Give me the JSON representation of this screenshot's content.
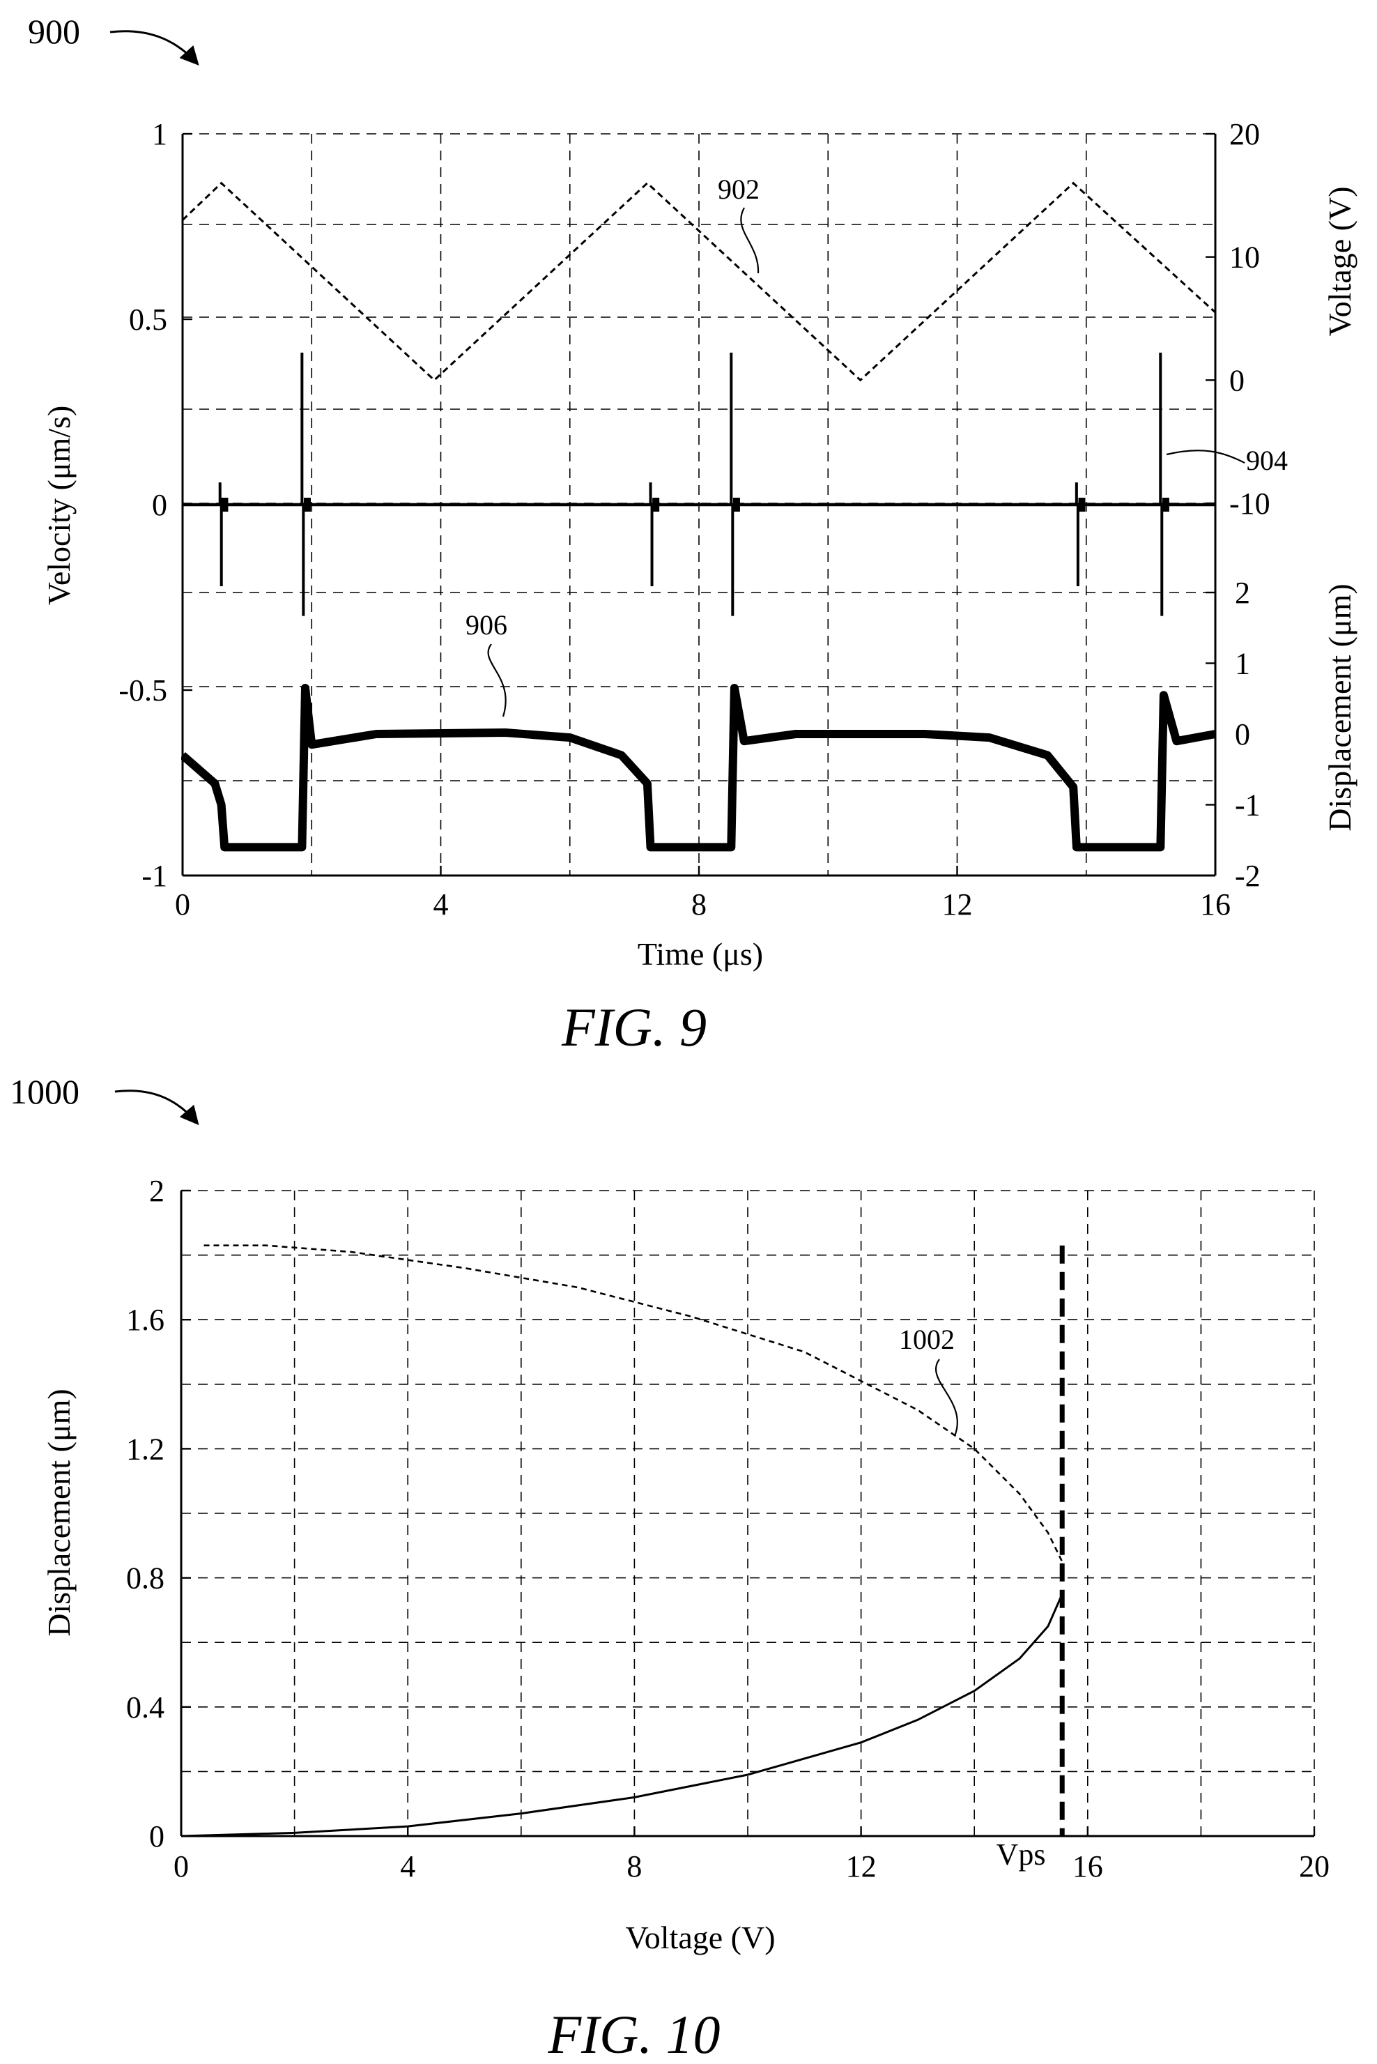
{
  "figure9": {
    "ref": "900",
    "caption": "FIG. 9",
    "xlabel": "Time (μs)",
    "ylabel_left": "Velocity (μm/s)",
    "ylabel_right_top": "Voltage (V)",
    "ylabel_right_bottom": "Displacement (μm)",
    "xticks": [
      "0",
      "4",
      "8",
      "12",
      "16"
    ],
    "yticks_left": [
      "1",
      "0.5",
      "0",
      "-0.5",
      "-1"
    ],
    "yticks_voltage": [
      "20",
      "10",
      "0",
      "-10"
    ],
    "yticks_displacement": [
      "2",
      "1",
      "0",
      "-1",
      "-2"
    ],
    "callouts": [
      "902",
      "904",
      "906"
    ]
  },
  "figure10": {
    "ref": "1000",
    "caption": "FIG. 10",
    "xlabel": "Voltage (V)",
    "ylabel": "Displacement (μm)",
    "xticks": [
      "0",
      "4",
      "8",
      "12",
      "16",
      "20"
    ],
    "yticks": [
      "2",
      "1.6",
      "1.2",
      "0.8",
      "0.4",
      "0"
    ],
    "callout": "1002",
    "vline_label": "Vps"
  },
  "chart_data": [
    {
      "type": "line",
      "title": "FIG. 9",
      "xlabel": "Time (μs)",
      "xlim": [
        0,
        16
      ],
      "grid": true,
      "series": [
        {
          "name": "902",
          "axis": "Voltage (V)",
          "ylim": [
            -20,
            20
          ],
          "x": [
            0,
            0.6,
            3.9,
            7.2,
            10.5,
            13.8,
            16
          ],
          "y": [
            13,
            16,
            0,
            16,
            0,
            16,
            5.5
          ]
        },
        {
          "name": "904",
          "axis": "Velocity (μm/s)",
          "ylim": [
            -1,
            1
          ],
          "x": [
            0,
            0.58,
            0.62,
            1.85,
            1.9,
            7.25,
            7.3,
            8.5,
            8.55,
            13.85,
            13.9,
            15.15,
            15.2,
            16
          ],
          "y": [
            0,
            0.06,
            -0.22,
            0.41,
            -0.3,
            0.06,
            -0.22,
            0.41,
            -0.3,
            0.06,
            -0.22,
            0.41,
            -0.3,
            0
          ]
        },
        {
          "name": "906",
          "axis": "Displacement (μm)",
          "ylim": [
            -2,
            2
          ],
          "x": [
            0,
            0.5,
            0.6,
            0.65,
            1.85,
            1.9,
            2.0,
            3.0,
            5.0,
            6.0,
            6.8,
            7.2,
            7.25,
            8.5,
            8.55,
            8.7,
            9.5,
            11.5,
            12.5,
            13.4,
            13.8,
            13.85,
            15.15,
            15.2,
            15.4,
            16
          ],
          "y": [
            -0.3,
            -0.7,
            -1.0,
            -1.6,
            -1.6,
            0.65,
            -0.15,
            0,
            0.02,
            -0.05,
            -0.3,
            -0.7,
            -1.6,
            -1.6,
            0.65,
            -0.1,
            0,
            0,
            -0.05,
            -0.3,
            -0.75,
            -1.6,
            -1.6,
            0.55,
            -0.1,
            0
          ]
        }
      ]
    },
    {
      "type": "line",
      "title": "FIG. 10",
      "xlabel": "Voltage (V)",
      "ylabel": "Displacement (μm)",
      "xlim": [
        0,
        20
      ],
      "ylim": [
        0,
        2
      ],
      "grid": true,
      "series": [
        {
          "name": "1002",
          "style": "dashed",
          "x": [
            0.4,
            1.5,
            3,
            5,
            7,
            9,
            11,
            13,
            14,
            14.8,
            15.3,
            15.55
          ],
          "y": [
            1.83,
            1.83,
            1.81,
            1.76,
            1.7,
            1.61,
            1.5,
            1.32,
            1.2,
            1.06,
            0.94,
            0.85
          ]
        },
        {
          "name": "1002",
          "style": "solid",
          "x": [
            0,
            2,
            4,
            6,
            8,
            10,
            12,
            13,
            14,
            14.8,
            15.3,
            15.55
          ],
          "y": [
            0,
            0.01,
            0.03,
            0.07,
            0.12,
            0.19,
            0.29,
            0.36,
            0.45,
            0.55,
            0.65,
            0.75
          ]
        }
      ],
      "vline": {
        "x": 15.55,
        "label": "Vps",
        "ymax": 1.83
      }
    }
  ]
}
